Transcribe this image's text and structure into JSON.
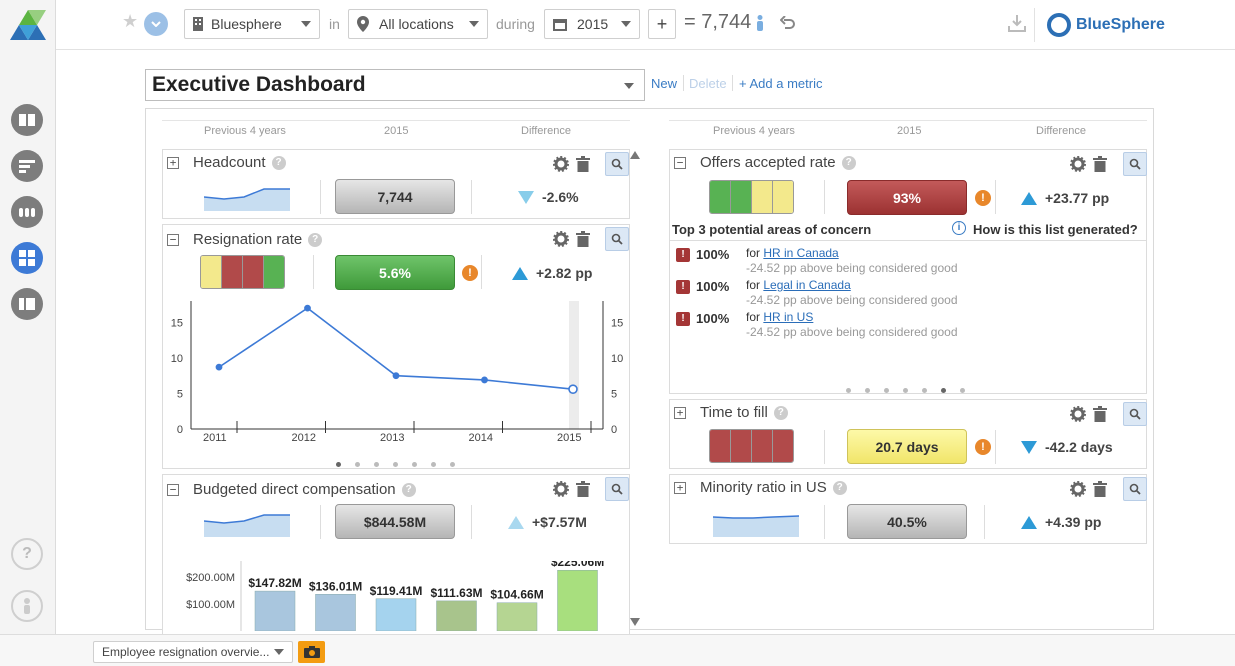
{
  "topbar": {
    "org_select": "Bluesphere",
    "in_label": "in",
    "location_select": "All locations",
    "during_label": "during",
    "year_select": "2015",
    "equals": "= ",
    "headcount_total": "7,744",
    "brand": "BlueSphere"
  },
  "dashboard": {
    "title": "Executive Dashboard",
    "new_link": "New",
    "delete_link": "Delete",
    "add_metric_link": "+ Add a metric",
    "col_prev": "Previous 4 years",
    "col_year": "2015",
    "col_diff": "Difference"
  },
  "metrics": {
    "headcount": {
      "title": "Headcount",
      "value": "7,744",
      "diff": "-2.6%"
    },
    "resignation": {
      "title": "Resignation rate",
      "value": "5.6%",
      "diff": "+2.82 pp"
    },
    "budget": {
      "title": "Budgeted direct compensation",
      "value": "$844.58M",
      "diff": "+$7.57M"
    },
    "offers": {
      "title": "Offers accepted rate",
      "value": "93%",
      "diff": "+23.77 pp"
    },
    "time_to_fill": {
      "title": "Time to fill",
      "value": "20.7 days",
      "diff": "-42.2 days"
    },
    "minority": {
      "title": "Minority ratio in US",
      "value": "40.5%",
      "diff": "+4.39 pp"
    }
  },
  "concerns": {
    "heading": "Top 3 potential areas of concern",
    "help_link": "How is this list generated?",
    "items": [
      {
        "pct": "100%",
        "prefix": "for ",
        "link": "HR in Canada",
        "note": "-24.52 pp above being considered good"
      },
      {
        "pct": "100%",
        "prefix": "for ",
        "link": "Legal in Canada",
        "note": "-24.52 pp above being considered good"
      },
      {
        "pct": "100%",
        "prefix": "for ",
        "link": "HR in US",
        "note": "-24.52 pp above being considered good"
      }
    ]
  },
  "bottom": {
    "view_select": "Employee resignation overvie..."
  },
  "chart_data": [
    {
      "type": "line",
      "x": [
        "2011",
        "2012",
        "2013",
        "2014",
        "2015"
      ],
      "series": [
        {
          "values": [
            8.7,
            17.0,
            7.5,
            6.9,
            5.6
          ]
        }
      ],
      "ylim": [
        0,
        18
      ],
      "yticks": [
        "15",
        "10",
        "5",
        "0"
      ],
      "grid": false
    },
    {
      "type": "bar",
      "categories": [
        "",
        "",
        "",
        "",
        "",
        ""
      ],
      "values": [
        147.82,
        136.01,
        119.41,
        111.63,
        104.66,
        225.06
      ],
      "labels": [
        "$147.82M",
        "$136.01M",
        "$119.41M",
        "$111.63M",
        "$104.66M",
        "$225.06M"
      ],
      "colors": [
        "#a9c6de",
        "#a9c6de",
        "#a5d3ee",
        "#a8c48c",
        "#b5d592",
        "#a8df7e"
      ],
      "yticks": [
        "$200.00M",
        "$100.00M"
      ]
    }
  ]
}
